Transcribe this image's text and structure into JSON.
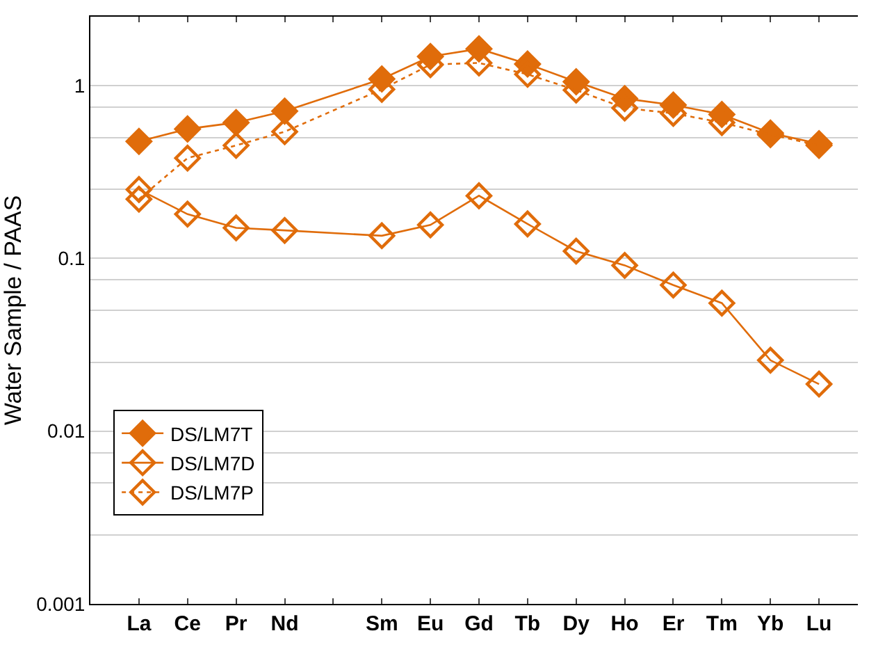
{
  "chart_data": {
    "type": "line",
    "ylabel": "Water Sample / PAAS",
    "categories": [
      "La",
      "Ce",
      "Pr",
      "Nd",
      null,
      "Sm",
      "Eu",
      "Gd",
      "Tb",
      "Dy",
      "Ho",
      "Er",
      "Tm",
      "Yb",
      "Lu"
    ],
    "series": [
      {
        "name": "DS/LM7T",
        "color": "#e06c0a",
        "marker": "diamond",
        "line_style": "solid",
        "values": [
          0.475,
          0.56,
          0.61,
          0.71,
          null,
          1.09,
          1.47,
          1.63,
          1.33,
          1.05,
          0.84,
          0.77,
          0.68,
          0.53,
          0.46
        ]
      },
      {
        "name": "DS/LM7D",
        "color": "#e06c0a",
        "marker": "diamond-open",
        "line_style": "solid",
        "values": [
          0.25,
          0.18,
          0.15,
          0.145,
          null,
          0.135,
          0.156,
          0.23,
          0.158,
          0.11,
          0.091,
          0.07,
          0.055,
          0.0257,
          0.0187
        ]
      },
      {
        "name": "DS/LM7P",
        "color": "#e06c0a",
        "marker": "diamond-open",
        "line_style": "dotted",
        "values": [
          0.22,
          0.38,
          0.45,
          0.54,
          null,
          0.95,
          1.32,
          1.35,
          1.16,
          0.94,
          0.74,
          0.69,
          0.61,
          0.52,
          0.45
        ]
      }
    ],
    "log": "y",
    "ylim": [
      0.001,
      2.5
    ],
    "yticks": [
      {
        "value": 0.001,
        "label": "0.001"
      },
      {
        "value": 0.0025,
        "label": null
      },
      {
        "value": 0.005,
        "label": null
      },
      {
        "value": 0.0075,
        "label": null
      },
      {
        "value": 0.01,
        "label": "0.01"
      },
      {
        "value": 0.025,
        "label": null
      },
      {
        "value": 0.05,
        "label": null
      },
      {
        "value": 0.075,
        "label": null
      },
      {
        "value": 0.1,
        "label": "0.1"
      },
      {
        "value": 0.25,
        "label": null
      },
      {
        "value": 0.5,
        "label": null
      },
      {
        "value": 0.75,
        "label": null
      },
      {
        "value": 1,
        "label": "1"
      }
    ],
    "grid": "y",
    "legend": "bottom left"
  }
}
